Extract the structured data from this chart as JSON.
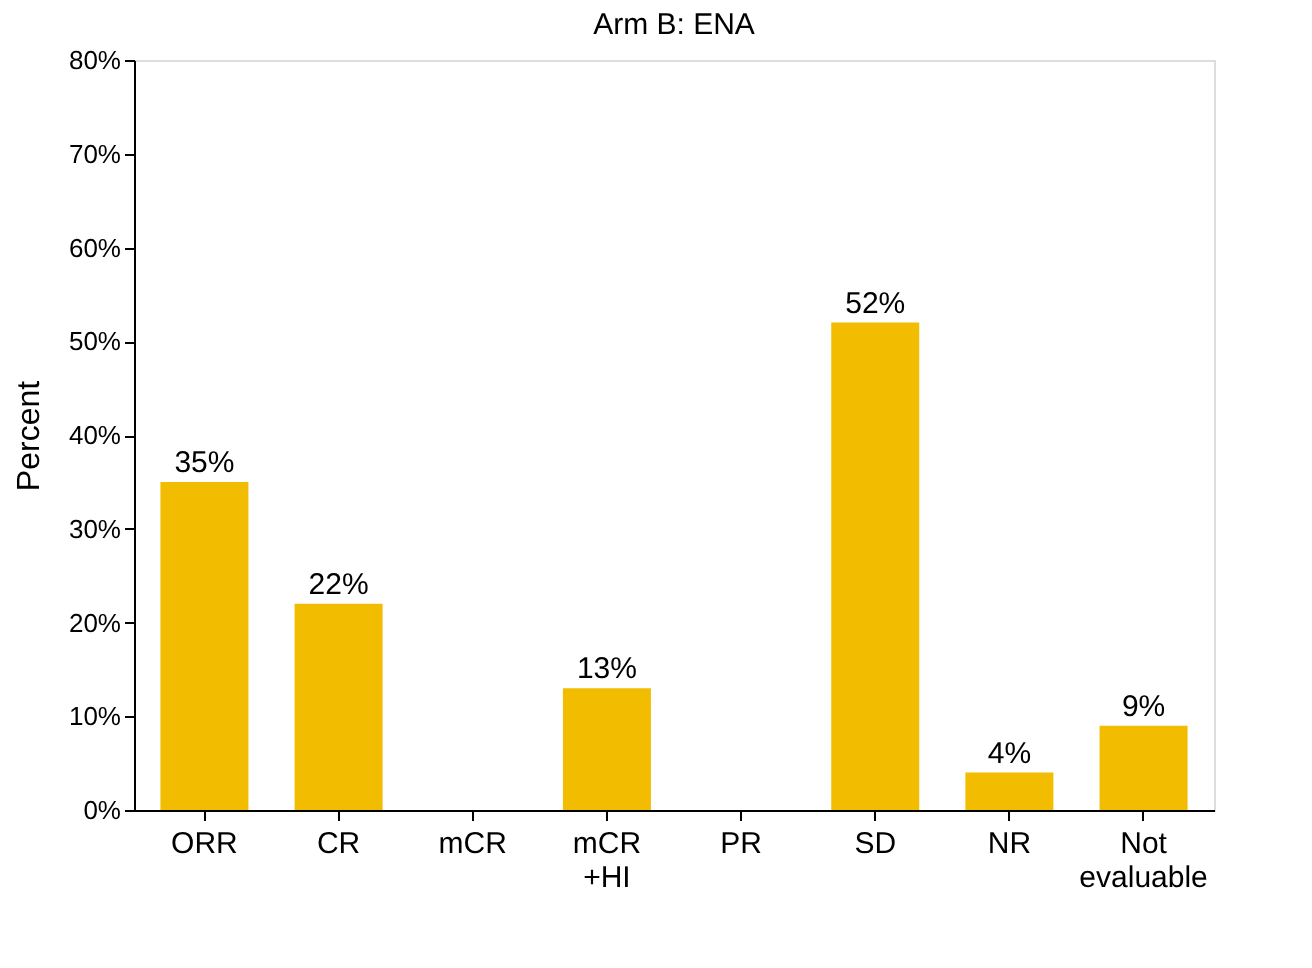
{
  "chart_data": {
    "type": "bar",
    "title": "Arm B: ENA",
    "ylabel": "Percent",
    "categories": [
      "ORR",
      "CR",
      "mCR",
      "mCR\n+HI",
      "PR",
      "SD",
      "NR",
      "Not\nevaluable"
    ],
    "values": [
      35,
      22,
      0,
      13,
      0,
      52,
      4,
      9
    ],
    "value_labels": [
      "35%",
      "22%",
      null,
      "13%",
      null,
      "52%",
      "4%",
      "9%"
    ],
    "color": "#f2bc00",
    "ylim": [
      0,
      80
    ],
    "yticks": [
      {
        "value": 0,
        "label": "0%"
      },
      {
        "value": 10,
        "label": "10%"
      },
      {
        "value": 20,
        "label": "20%"
      },
      {
        "value": 30,
        "label": "30%"
      },
      {
        "value": 40,
        "label": "40%"
      },
      {
        "value": 50,
        "label": "50%"
      },
      {
        "value": 60,
        "label": "60%"
      },
      {
        "value": 70,
        "label": "70%"
      },
      {
        "value": 80,
        "label": "80%"
      }
    ],
    "grid": false
  }
}
